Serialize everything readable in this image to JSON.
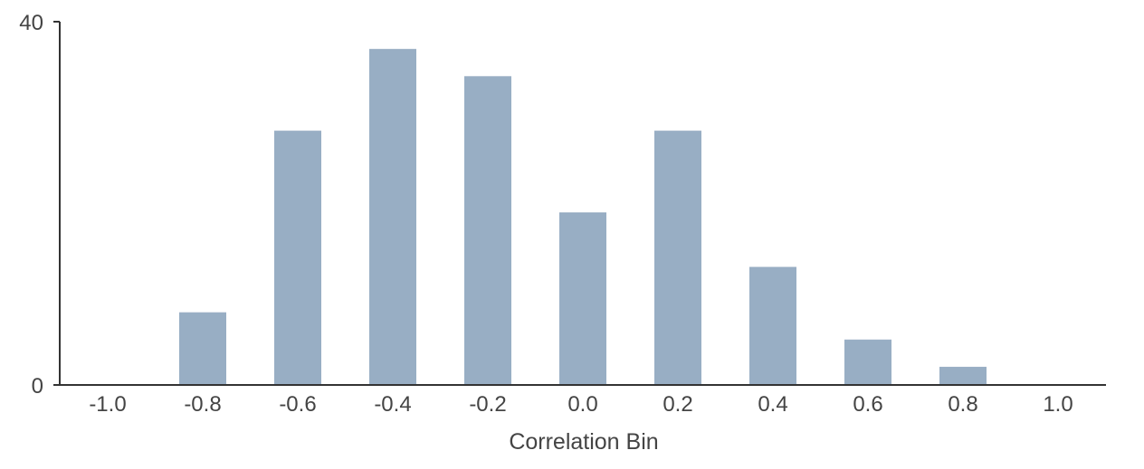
{
  "chart_data": {
    "type": "bar",
    "title": "",
    "xlabel": "Correlation Bin",
    "ylabel": "",
    "categories": [
      "-1.0",
      "-0.8",
      "-0.6",
      "-0.4",
      "-0.2",
      "0.0",
      "0.2",
      "0.4",
      "0.6",
      "0.8",
      "1.0"
    ],
    "values": [
      0,
      8,
      28,
      37,
      34,
      19,
      28,
      13,
      5,
      2,
      0
    ],
    "ylim": [
      0,
      40
    ],
    "yticks": [
      "0",
      "40"
    ],
    "grid": false,
    "legend": "none",
    "bar_color": "#98aec4",
    "axis_color": "#333333",
    "text_color": "#444444"
  }
}
